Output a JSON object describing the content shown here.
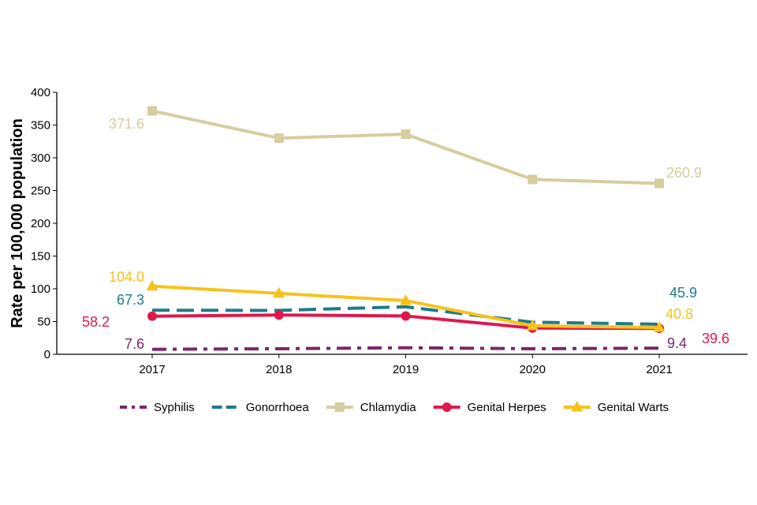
{
  "chart_data": {
    "type": "line",
    "title": "",
    "xlabel": "",
    "ylabel": "Rate per 100,000 population",
    "x": [
      "2017",
      "2018",
      "2019",
      "2020",
      "2021"
    ],
    "ylim": [
      0,
      400
    ],
    "yticks": [
      "0",
      "50",
      "100",
      "150",
      "200",
      "250",
      "300",
      "350",
      "400"
    ],
    "grid": false,
    "legend_position": "bottom",
    "series": [
      {
        "name": "Syphilis",
        "values": [
          7.6,
          8.5,
          10.0,
          8.5,
          9.4
        ],
        "color": "#7b2667",
        "dash": "dash-dot",
        "marker": "none"
      },
      {
        "name": "Gonorrhoea",
        "values": [
          67.3,
          67.0,
          72.5,
          49.0,
          45.9
        ],
        "color": "#1f7a8c",
        "dash": "dashed",
        "marker": "none"
      },
      {
        "name": "Chlamydia",
        "values": [
          371.6,
          330.0,
          336.0,
          267.0,
          260.9
        ],
        "color": "#d6cda0",
        "dash": "solid",
        "marker": "square"
      },
      {
        "name": "Genital Herpes",
        "values": [
          58.2,
          60.0,
          58.5,
          40.0,
          39.6
        ],
        "color": "#e0174c",
        "dash": "solid",
        "marker": "circle"
      },
      {
        "name": "Genital Warts",
        "values": [
          104.0,
          93.0,
          82.0,
          43.5,
          40.8
        ],
        "color": "#f7c21b",
        "dash": "solid",
        "marker": "triangle"
      }
    ],
    "annotations": [
      {
        "series": "Chlamydia",
        "x": "2017",
        "text": "371.6",
        "side": "left"
      },
      {
        "series": "Chlamydia",
        "x": "2021",
        "text": "260.9",
        "side": "right"
      },
      {
        "series": "Genital Warts",
        "x": "2017",
        "text": "104.0",
        "side": "left"
      },
      {
        "series": "Gonorrhoea",
        "x": "2017",
        "text": "67.3",
        "side": "left"
      },
      {
        "series": "Genital Herpes",
        "x": "2017",
        "text": "58.2",
        "side": "left"
      },
      {
        "series": "Syphilis",
        "x": "2017",
        "text": "7.6",
        "side": "left"
      },
      {
        "series": "Gonorrhoea",
        "x": "2021",
        "text": "45.9",
        "side": "right"
      },
      {
        "series": "Genital Warts",
        "x": "2021",
        "text": "40.8",
        "side": "right"
      },
      {
        "series": "Syphilis",
        "x": "2021",
        "text": "9.4",
        "side": "right"
      },
      {
        "series": "Genital Herpes",
        "x": "2021",
        "text": "39.6",
        "side": "right"
      }
    ]
  }
}
